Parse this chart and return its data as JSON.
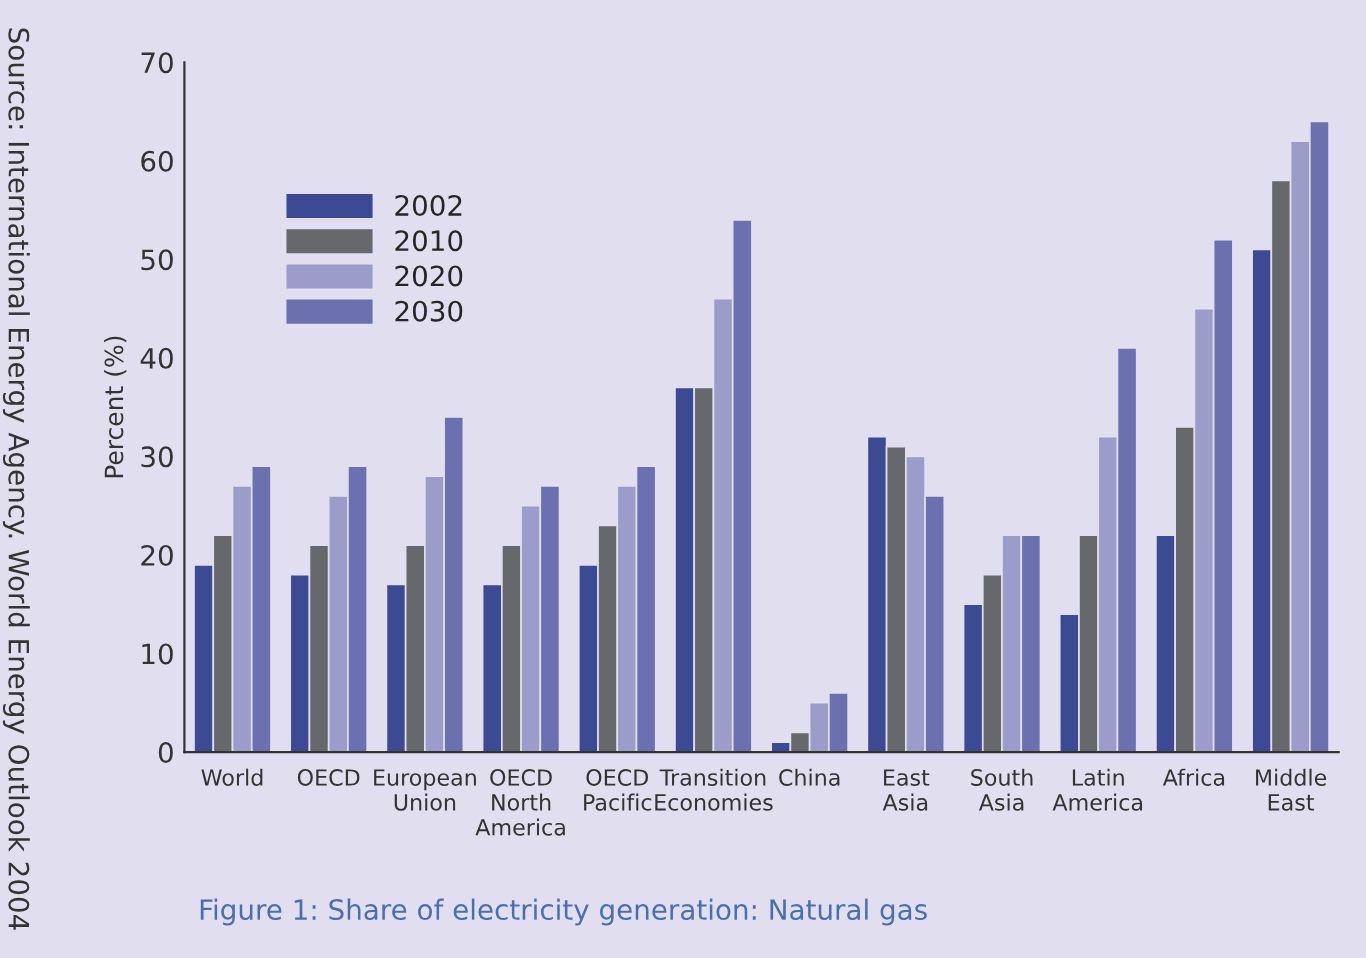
{
  "chart_data": {
    "type": "bar",
    "title": "Figure 1: Share of electricity generation: Natural gas",
    "ylabel": "Percent (%)",
    "annotations": [
      "Source: International Energy Agency. World Energy Outlook 2004"
    ],
    "categories": [
      "World",
      "OECD",
      "European\nUnion",
      "OECD\nNorth\nAmerica",
      "OECD\nPacific",
      "Transition\nEconomies",
      "China",
      "East\nAsia",
      "South\nAsia",
      "Latin\nAmerica",
      "Africa",
      "Middle\nEast"
    ],
    "series": [
      {
        "name": "2002",
        "color": "#3b4a93",
        "values": [
          19,
          18,
          17,
          17,
          19,
          37,
          1,
          32,
          15,
          14,
          22,
          51
        ]
      },
      {
        "name": "2010",
        "color": "#67686c",
        "values": [
          22,
          21,
          21,
          21,
          23,
          37,
          2,
          31,
          18,
          22,
          33,
          58
        ]
      },
      {
        "name": "2020",
        "color": "#9b9cc9",
        "values": [
          27,
          26,
          28,
          25,
          27,
          46,
          5,
          30,
          22,
          32,
          45,
          62
        ]
      },
      {
        "name": "2030",
        "color": "#6b71ae",
        "values": [
          29,
          29,
          34,
          27,
          29,
          54,
          6,
          26,
          22,
          41,
          52,
          64
        ]
      }
    ],
    "ylim": [
      0,
      70
    ],
    "yticks": [
      0,
      10,
      20,
      30,
      40,
      50,
      60,
      70
    ],
    "legend": "top left",
    "grid": false
  }
}
